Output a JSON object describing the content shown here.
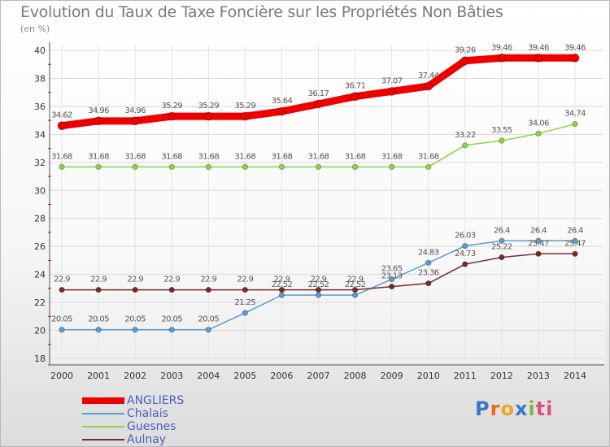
{
  "title": "Evolution du Taux de Taxe Foncière sur les Propriétés Non Bâties",
  "unit_label": "(en %)",
  "brand": {
    "text": "Proxiti",
    "letters": [
      "P",
      "r",
      "o",
      "x",
      "i",
      "ti"
    ]
  },
  "chart_data": {
    "type": "line",
    "title": "Evolution du Taux de Taxe Foncière sur les Propriétés Non Bâties",
    "ylabel": "(en %)",
    "xlabel": "",
    "x": [
      2000,
      2001,
      2002,
      2003,
      2004,
      2005,
      2006,
      2007,
      2008,
      2009,
      2010,
      2011,
      2012,
      2013,
      2014
    ],
    "ylim": [
      18,
      40
    ],
    "yticks": [
      18,
      20,
      22,
      24,
      26,
      28,
      30,
      32,
      34,
      36,
      38,
      40
    ],
    "grid": true,
    "legend_position": "bottom-left",
    "series": [
      {
        "name": "ANGLIERS",
        "color": "#ee0000",
        "values": [
          34.62,
          34.96,
          34.96,
          35.29,
          35.29,
          35.29,
          35.64,
          36.17,
          36.71,
          37.07,
          37.44,
          39.26,
          39.46,
          39.46,
          39.46
        ]
      },
      {
        "name": "Chalais",
        "color": "#5d9bd2",
        "values": [
          20.05,
          20.05,
          20.05,
          20.05,
          20.05,
          21.25,
          22.52,
          22.52,
          22.52,
          23.65,
          24.83,
          26.03,
          26.4,
          26.4,
          26.4
        ]
      },
      {
        "name": "Guesnes",
        "color": "#8fd24a",
        "values": [
          31.68,
          31.68,
          31.68,
          31.68,
          31.68,
          31.68,
          31.68,
          31.68,
          31.68,
          31.68,
          31.68,
          33.22,
          33.55,
          34.06,
          34.74
        ]
      },
      {
        "name": "Aulnay",
        "color": "#7a2a2a",
        "values": [
          22.9,
          22.9,
          22.9,
          22.9,
          22.9,
          22.9,
          22.9,
          22.9,
          22.9,
          23.13,
          23.36,
          24.73,
          25.22,
          25.47,
          25.47
        ]
      }
    ],
    "data_labels": [
      [
        "34.62",
        "34.96",
        "34.96",
        "35.29",
        "35.29",
        "35.29",
        "35.64",
        "36.17",
        "36.71",
        "37.07",
        "37.44",
        "39.26",
        "39.46",
        "39.46",
        "39.46"
      ],
      [
        "20.05",
        "20.05",
        "20.05",
        "20.05",
        "20.05",
        "21.25",
        "22.52",
        "22.52",
        "22.52",
        "23.65",
        "24.83",
        "26.03",
        "26.4",
        "26.4",
        "26.4"
      ],
      [
        "31.68",
        "31.68",
        "31.68",
        "31.68",
        "31.68",
        "31.68",
        "31.68",
        "31.68",
        "31.68",
        "31.68",
        "31.68",
        "33.22",
        "33.55",
        "34.06",
        "34.74"
      ],
      [
        "22.9",
        "22.9",
        "22.9",
        "22.9",
        "22.9",
        "22.9",
        "22.9",
        "22.9",
        "22.9",
        "23.13",
        "23.36",
        "24.73",
        "25.22",
        "25.47",
        "25.47"
      ]
    ]
  }
}
